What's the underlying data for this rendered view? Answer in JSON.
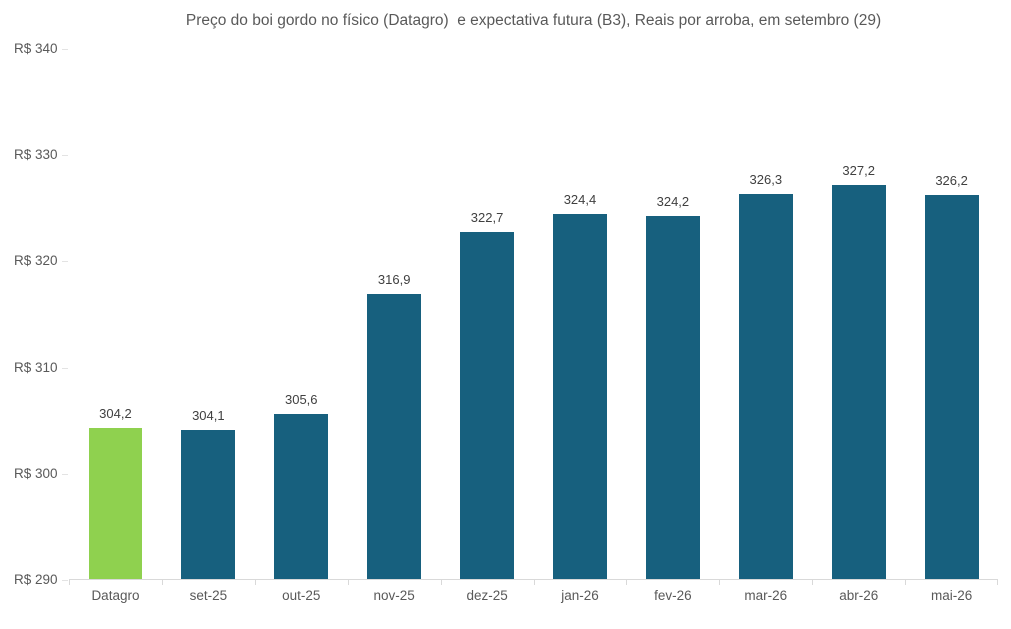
{
  "chart_data": {
    "type": "bar",
    "title": "Preço do boi gordo no físico (Datagro)  e expectativa futura (B3), Reais por arroba, em setembro (29)",
    "categories": [
      "Datagro",
      "set-25",
      "out-25",
      "nov-25",
      "dez-25",
      "jan-26",
      "fev-26",
      "mar-26",
      "abr-26",
      "mai-26"
    ],
    "values": [
      304.2,
      304.1,
      305.6,
      316.9,
      322.7,
      324.4,
      324.2,
      326.3,
      327.2,
      326.2
    ],
    "value_labels": [
      "304,2",
      "304,1",
      "305,6",
      "316,9",
      "322,7",
      "324,4",
      "324,2",
      "326,3",
      "327,2",
      "326,2"
    ],
    "bar_colors": [
      "#8FD14F",
      "#17607E",
      "#17607E",
      "#17607E",
      "#17607E",
      "#17607E",
      "#17607E",
      "#17607E",
      "#17607E",
      "#17607E"
    ],
    "xlabel": "",
    "ylabel": "",
    "ylim": [
      290,
      340
    ],
    "y_ticks": [
      {
        "value": 290,
        "label": "R$ 290"
      },
      {
        "value": 300,
        "label": "R$ 300"
      },
      {
        "value": 310,
        "label": "R$ 310"
      },
      {
        "value": 320,
        "label": "R$ 320"
      },
      {
        "value": 330,
        "label": "R$ 330"
      },
      {
        "value": 340,
        "label": "R$ 340"
      }
    ],
    "grid": false,
    "legend": "none",
    "colors": {
      "highlight_bar": "#8FD14F",
      "default_bar": "#17607E",
      "axis_line": "#D9D9D9",
      "title_text": "#595959",
      "axis_text": "#595959",
      "data_label_text": "#404040"
    }
  }
}
